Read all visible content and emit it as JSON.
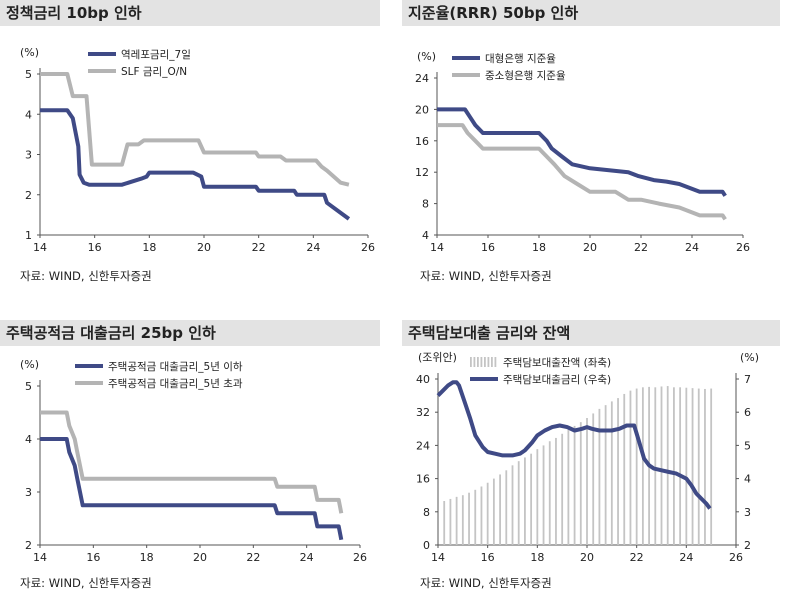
{
  "charts": [
    {
      "title": "정책금리 10bp 인하",
      "source": "자료: WIND, 신한투자증권",
      "chart_data": {
        "type": "line",
        "unit_label": "(%)",
        "xlim": [
          14,
          26
        ],
        "xticks": [
          14,
          16,
          18,
          20,
          22,
          24,
          26
        ],
        "ylim": [
          1,
          5
        ],
        "yticks": [
          1,
          2,
          3,
          4,
          5
        ],
        "series": [
          {
            "name": "역레포금리_7일",
            "color": "#3f4a86",
            "x": [
              14.0,
              15.0,
              15.2,
              15.4,
              15.45,
              15.6,
              15.8,
              17.0,
              17.7,
              17.9,
              18.0,
              19.6,
              19.9,
              20.0,
              21.9,
              22.0,
              23.3,
              23.4,
              24.4,
              24.5,
              25.1,
              25.3
            ],
            "y": [
              4.1,
              4.1,
              3.9,
              3.2,
              2.5,
              2.3,
              2.25,
              2.25,
              2.4,
              2.45,
              2.55,
              2.55,
              2.45,
              2.2,
              2.2,
              2.1,
              2.1,
              2.0,
              2.0,
              1.8,
              1.5,
              1.4
            ]
          },
          {
            "name": "SLF 금리_O/N",
            "color": "#b4b4b4",
            "x": [
              14.0,
              15.0,
              15.2,
              15.7,
              15.9,
              17.0,
              17.2,
              17.6,
              17.8,
              18.0,
              19.8,
              20.0,
              21.9,
              22.0,
              22.8,
              23.0,
              24.1,
              24.3,
              24.5,
              25.0,
              25.3
            ],
            "y": [
              5.0,
              5.0,
              4.45,
              4.45,
              2.75,
              2.75,
              3.25,
              3.25,
              3.35,
              3.35,
              3.35,
              3.05,
              3.05,
              2.95,
              2.95,
              2.85,
              2.85,
              2.7,
              2.6,
              2.3,
              2.25
            ]
          }
        ]
      }
    },
    {
      "title": "지준율(RRR) 50bp 인하",
      "source": "자료: WIND, 신한투자증권",
      "chart_data": {
        "type": "line",
        "unit_label": "(%)",
        "xlim": [
          14,
          26
        ],
        "xticks": [
          14,
          16,
          18,
          20,
          22,
          24,
          26
        ],
        "ylim": [
          4,
          24
        ],
        "yticks": [
          4,
          8,
          12,
          16,
          20,
          24
        ],
        "series": [
          {
            "name": "대형은행 지준율",
            "color": "#3f4a86",
            "x": [
              14.0,
              15.1,
              15.3,
              15.5,
              15.8,
              18.0,
              18.3,
              18.5,
              18.9,
              19.3,
              20.0,
              21.5,
              21.9,
              22.5,
              23.0,
              23.5,
              24.3,
              25.2,
              25.3
            ],
            "y": [
              20.0,
              20.0,
              19.0,
              18.0,
              17.0,
              17.0,
              16.0,
              15.0,
              14.0,
              13.0,
              12.5,
              12.0,
              11.5,
              11.0,
              10.8,
              10.5,
              9.5,
              9.5,
              9.0
            ]
          },
          {
            "name": "중소형은행 지준율",
            "color": "#b4b4b4",
            "x": [
              14.0,
              15.0,
              15.2,
              15.5,
              15.8,
              18.0,
              18.3,
              18.6,
              19.0,
              19.5,
              20.0,
              21.0,
              21.5,
              22.0,
              22.7,
              23.5,
              24.3,
              25.2,
              25.3
            ],
            "y": [
              18.0,
              18.0,
              17.0,
              16.0,
              15.0,
              15.0,
              14.0,
              13.0,
              11.5,
              10.5,
              9.5,
              9.5,
              8.5,
              8.5,
              8.0,
              7.5,
              6.5,
              6.5,
              6.0
            ]
          }
        ]
      }
    },
    {
      "title": "주택공적금 대출금리 25bp 인하",
      "source": "자료: WIND, 신한투자증권",
      "chart_data": {
        "type": "line",
        "unit_label": "(%)",
        "xlim": [
          14,
          26
        ],
        "xticks": [
          14,
          16,
          18,
          20,
          22,
          24,
          26
        ],
        "ylim": [
          2,
          5
        ],
        "yticks": [
          2,
          3,
          4,
          5
        ],
        "series": [
          {
            "name": "주택공적금 대출금리_5년 이하",
            "color": "#3f4a86",
            "x": [
              14.0,
              15.0,
              15.1,
              15.3,
              15.4,
              15.5,
              15.6,
              22.8,
              22.9,
              24.3,
              24.4,
              25.2,
              25.3
            ],
            "y": [
              4.0,
              4.0,
              3.75,
              3.5,
              3.25,
              3.0,
              2.75,
              2.75,
              2.6,
              2.6,
              2.35,
              2.35,
              2.1
            ]
          },
          {
            "name": "주택공적금 대출금리_5년 초과",
            "color": "#b4b4b4",
            "x": [
              14.0,
              15.0,
              15.1,
              15.3,
              15.4,
              15.5,
              15.6,
              22.8,
              22.9,
              24.3,
              24.4,
              25.2,
              25.3
            ],
            "y": [
              4.5,
              4.5,
              4.25,
              4.0,
              3.75,
              3.5,
              3.25,
              3.25,
              3.1,
              3.1,
              2.85,
              2.85,
              2.6
            ]
          }
        ]
      }
    },
    {
      "title": "주택담보대출 금리와 잔액",
      "source": "자료: WIND, 신한투자증권",
      "chart_data": {
        "type": "bar+line",
        "left_unit_label": "(조위안)",
        "right_unit_label": "(%)",
        "xlim": [
          14,
          26
        ],
        "xticks": [
          14,
          16,
          18,
          20,
          22,
          24,
          26
        ],
        "ylim_left": [
          0,
          40
        ],
        "yticks_left": [
          0,
          8,
          16,
          24,
          32,
          40
        ],
        "ylim_right": [
          2,
          7
        ],
        "yticks_right": [
          2,
          3,
          4,
          5,
          6,
          7
        ],
        "bars": {
          "name": "주택담보대출잔액 (좌축)",
          "color": "#c4c4c4",
          "x": [
            14.25,
            14.5,
            14.75,
            15.0,
            15.25,
            15.5,
            15.75,
            16.0,
            16.25,
            16.5,
            16.75,
            17.0,
            17.25,
            17.5,
            17.75,
            18.0,
            18.25,
            18.5,
            18.75,
            19.0,
            19.25,
            19.5,
            19.75,
            20.0,
            20.25,
            20.5,
            20.75,
            21.0,
            21.25,
            21.5,
            21.75,
            22.0,
            22.25,
            22.5,
            22.75,
            23.0,
            23.25,
            23.5,
            23.75,
            24.0,
            24.25,
            24.5,
            24.75,
            25.0
          ],
          "values": [
            10.6,
            11.1,
            11.6,
            12.0,
            12.6,
            13.3,
            14.1,
            15.0,
            16.0,
            17.0,
            18.0,
            19.2,
            20.2,
            21.1,
            22.0,
            23.1,
            24.0,
            25.0,
            25.8,
            26.8,
            27.7,
            28.7,
            29.6,
            30.6,
            31.7,
            32.8,
            33.7,
            34.6,
            35.4,
            36.4,
            37.2,
            37.7,
            38.0,
            38.1,
            38.0,
            38.2,
            38.3,
            38.0,
            38.0,
            37.9,
            37.8,
            37.7,
            37.6,
            37.7
          ]
        },
        "series": [
          {
            "name": "주택담보대출금리 (우축)",
            "color": "#3f4a86",
            "axis": "right",
            "x": [
              14.0,
              14.2,
              14.4,
              14.6,
              14.75,
              14.85,
              15.1,
              15.3,
              15.5,
              15.8,
              16.0,
              16.3,
              16.6,
              17.0,
              17.3,
              17.5,
              17.8,
              18.0,
              18.3,
              18.6,
              18.9,
              19.2,
              19.5,
              19.8,
              20.0,
              20.2,
              20.5,
              20.8,
              21.0,
              21.3,
              21.6,
              21.9,
              22.1,
              22.3,
              22.5,
              22.7,
              23.0,
              23.3,
              23.6,
              24.0,
              24.2,
              24.4,
              24.6,
              24.8,
              24.95
            ],
            "y": [
              6.5,
              6.65,
              6.8,
              6.9,
              6.9,
              6.8,
              6.25,
              5.8,
              5.3,
              4.95,
              4.8,
              4.75,
              4.7,
              4.7,
              4.75,
              4.85,
              5.1,
              5.3,
              5.45,
              5.55,
              5.6,
              5.55,
              5.45,
              5.5,
              5.55,
              5.5,
              5.45,
              5.45,
              5.45,
              5.5,
              5.6,
              5.6,
              5.1,
              4.6,
              4.4,
              4.3,
              4.25,
              4.2,
              4.15,
              4.0,
              3.8,
              3.55,
              3.4,
              3.25,
              3.1
            ]
          }
        ]
      }
    }
  ]
}
